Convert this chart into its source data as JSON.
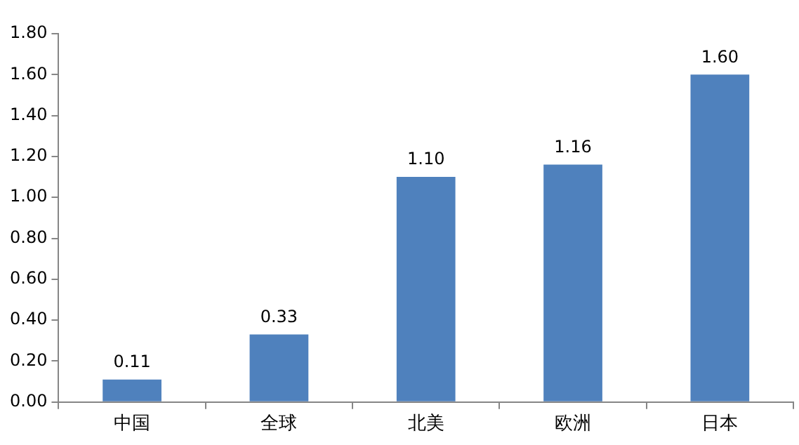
{
  "chart_data": {
    "type": "bar",
    "categories": [
      "中国",
      "全球",
      "北美",
      "欧洲",
      "日本"
    ],
    "values": [
      0.11,
      0.33,
      1.1,
      1.16,
      1.6
    ],
    "value_labels": [
      "0.11",
      "0.33",
      "1.10",
      "1.16",
      "1.60"
    ],
    "color": "#4f81bd",
    "ylim": [
      0,
      1.8
    ],
    "yticks": [
      {
        "value": 0,
        "label": "0.00"
      },
      {
        "value": 0.2,
        "label": "0.20"
      },
      {
        "value": 0.4,
        "label": "0.40"
      },
      {
        "value": 0.6,
        "label": "0.60"
      },
      {
        "value": 0.8,
        "label": "0.80"
      },
      {
        "value": 1.0,
        "label": "1.00"
      },
      {
        "value": 1.2,
        "label": "1.20"
      },
      {
        "value": 1.4,
        "label": "1.40"
      },
      {
        "value": 1.6,
        "label": "1.60"
      },
      {
        "value": 1.8,
        "label": "1.80"
      }
    ],
    "grid": false,
    "legend": false
  }
}
